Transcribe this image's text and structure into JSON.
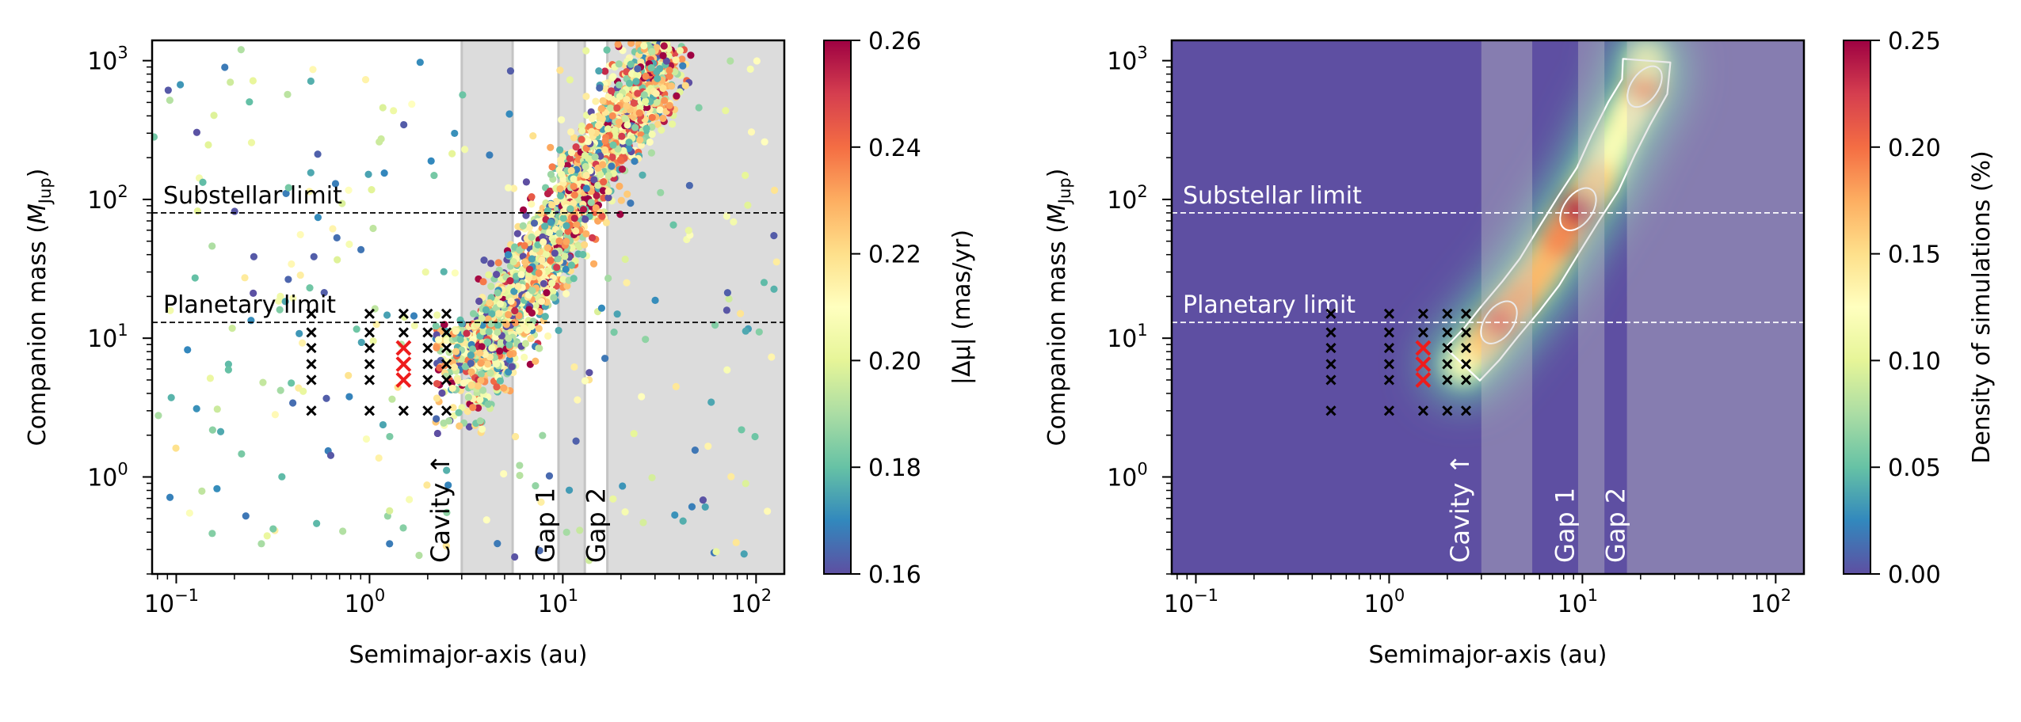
{
  "chart_data": [
    {
      "type": "scatter",
      "panel": "left",
      "xlabel": "Semimajor-axis (au)",
      "ylabel_main": "Companion mass (",
      "ylabel_sym": "M",
      "ylabel_sub": "Jup",
      "ylabel_end": ")",
      "xscale": "log",
      "yscale": "log",
      "xlim": [
        0.075,
        140
      ],
      "ylim": [
        0.2,
        1400
      ],
      "x_ticks": [
        {
          "value": 0.1,
          "base": "10",
          "exp": "−1"
        },
        {
          "value": 1,
          "base": "10",
          "exp": "0"
        },
        {
          "value": 10,
          "base": "10",
          "exp": "1"
        },
        {
          "value": 100,
          "base": "10",
          "exp": "2"
        }
      ],
      "y_ticks": [
        {
          "value": 1,
          "base": "10",
          "exp": "0"
        },
        {
          "value": 10,
          "base": "10",
          "exp": "1"
        },
        {
          "value": 100,
          "base": "10",
          "exp": "2"
        },
        {
          "value": 1000,
          "base": "10",
          "exp": "3"
        }
      ],
      "hlines": [
        {
          "y": 80,
          "label": "Substellar limit"
        },
        {
          "y": 13,
          "label": "Planetary limit"
        }
      ],
      "bands": [
        [
          3,
          5.5
        ],
        [
          9.5,
          13
        ],
        [
          17,
          140
        ]
      ],
      "band_labels": [
        {
          "x": 2.35,
          "text": "Cavity ↑"
        },
        {
          "x": 8.2,
          "text": "Gap 1"
        },
        {
          "x": 15.0,
          "text": "Gap 2"
        }
      ],
      "colorbar": {
        "label": "|Δμ| (mas/yr)",
        "range": [
          0.16,
          0.26
        ],
        "ticks": [
          "0.16",
          "0.18",
          "0.20",
          "0.22",
          "0.24",
          "0.26"
        ],
        "cmap": "Spectral_r"
      },
      "grid_points_black": [
        [
          0.5,
          3
        ],
        [
          0.5,
          5
        ],
        [
          0.5,
          6.5
        ],
        [
          0.5,
          8.5
        ],
        [
          0.5,
          11
        ],
        [
          0.5,
          15
        ],
        [
          1.0,
          3
        ],
        [
          1.0,
          5
        ],
        [
          1.0,
          6.5
        ],
        [
          1.0,
          8.5
        ],
        [
          1.0,
          11
        ],
        [
          1.0,
          15
        ],
        [
          1.5,
          3
        ],
        [
          1.5,
          11
        ],
        [
          1.5,
          15
        ],
        [
          2.0,
          3
        ],
        [
          2.0,
          5
        ],
        [
          2.0,
          6.5
        ],
        [
          2.0,
          8.5
        ],
        [
          2.0,
          11
        ],
        [
          2.0,
          15
        ],
        [
          2.5,
          3
        ],
        [
          2.5,
          5
        ],
        [
          2.5,
          6.5
        ],
        [
          2.5,
          8.5
        ],
        [
          2.5,
          11
        ],
        [
          2.5,
          15
        ]
      ],
      "grid_points_red": [
        [
          1.5,
          5
        ],
        [
          1.5,
          6.5
        ],
        [
          1.5,
          8.5
        ]
      ],
      "scatter_model": {
        "n_points": 2300,
        "description_values": "simulated companions: main track from (a≈3 au, M≈2–13 Mjup) rising to (a≈30 au, M≈1000 Mjup); scattered background across full range"
      }
    },
    {
      "type": "heatmap",
      "panel": "right",
      "xlabel": "Semimajor-axis (au)",
      "ylabel_main": "Companion mass (",
      "ylabel_sym": "M",
      "ylabel_sub": "Jup",
      "ylabel_end": ")",
      "xscale": "log",
      "yscale": "log",
      "xlim": [
        0.075,
        140
      ],
      "ylim": [
        0.2,
        1400
      ],
      "x_ticks": [
        {
          "value": 0.1,
          "base": "10",
          "exp": "−1"
        },
        {
          "value": 1,
          "base": "10",
          "exp": "0"
        },
        {
          "value": 10,
          "base": "10",
          "exp": "1"
        },
        {
          "value": 100,
          "base": "10",
          "exp": "2"
        }
      ],
      "y_ticks": [
        {
          "value": 1,
          "base": "10",
          "exp": "0"
        },
        {
          "value": 10,
          "base": "10",
          "exp": "1"
        },
        {
          "value": 100,
          "base": "10",
          "exp": "2"
        },
        {
          "value": 1000,
          "base": "10",
          "exp": "3"
        }
      ],
      "hlines": [
        {
          "y": 80,
          "label": "Substellar limit"
        },
        {
          "y": 13,
          "label": "Planetary limit"
        }
      ],
      "bands": [
        [
          3,
          5.5
        ],
        [
          9.5,
          13
        ],
        [
          17,
          140
        ]
      ],
      "band_labels": [
        {
          "x": 2.35,
          "text": "Cavity ↑"
        },
        {
          "x": 8.2,
          "text": "Gap 1"
        },
        {
          "x": 15.0,
          "text": "Gap 2"
        }
      ],
      "colorbar": {
        "label": "Density of simulations (%)",
        "range": [
          0.0,
          0.25
        ],
        "ticks": [
          "0.00",
          "0.05",
          "0.10",
          "0.15",
          "0.20",
          "0.25"
        ],
        "cmap": "Spectral_r"
      },
      "density_ridge": [
        [
          2.4,
          6.5,
          0.12
        ],
        [
          3.0,
          9.0,
          0.16
        ],
        [
          3.7,
          13.0,
          0.21
        ],
        [
          4.8,
          20.0,
          0.18
        ],
        [
          6.0,
          30.0,
          0.17
        ],
        [
          7.5,
          50.0,
          0.19
        ],
        [
          9.5,
          85.0,
          0.24
        ],
        [
          12.0,
          140.0,
          0.16
        ],
        [
          14.5,
          250.0,
          0.12
        ],
        [
          17.5,
          420.0,
          0.13
        ],
        [
          21.0,
          650.0,
          0.19
        ],
        [
          21.5,
          1000.0,
          0.11
        ]
      ],
      "grid_points_black": [
        [
          0.5,
          3
        ],
        [
          0.5,
          5
        ],
        [
          0.5,
          6.5
        ],
        [
          0.5,
          8.5
        ],
        [
          0.5,
          11
        ],
        [
          0.5,
          15
        ],
        [
          1.0,
          3
        ],
        [
          1.0,
          5
        ],
        [
          1.0,
          6.5
        ],
        [
          1.0,
          8.5
        ],
        [
          1.0,
          11
        ],
        [
          1.0,
          15
        ],
        [
          1.5,
          3
        ],
        [
          1.5,
          11
        ],
        [
          1.5,
          15
        ],
        [
          2.0,
          3
        ],
        [
          2.0,
          5
        ],
        [
          2.0,
          6.5
        ],
        [
          2.0,
          8.5
        ],
        [
          2.0,
          11
        ],
        [
          2.0,
          15
        ],
        [
          2.5,
          3
        ],
        [
          2.5,
          5
        ],
        [
          2.5,
          6.5
        ],
        [
          2.5,
          8.5
        ],
        [
          2.5,
          11
        ],
        [
          2.5,
          15
        ]
      ],
      "grid_points_red": [
        [
          1.5,
          5
        ],
        [
          1.5,
          6.5
        ],
        [
          1.5,
          8.5
        ]
      ]
    }
  ]
}
